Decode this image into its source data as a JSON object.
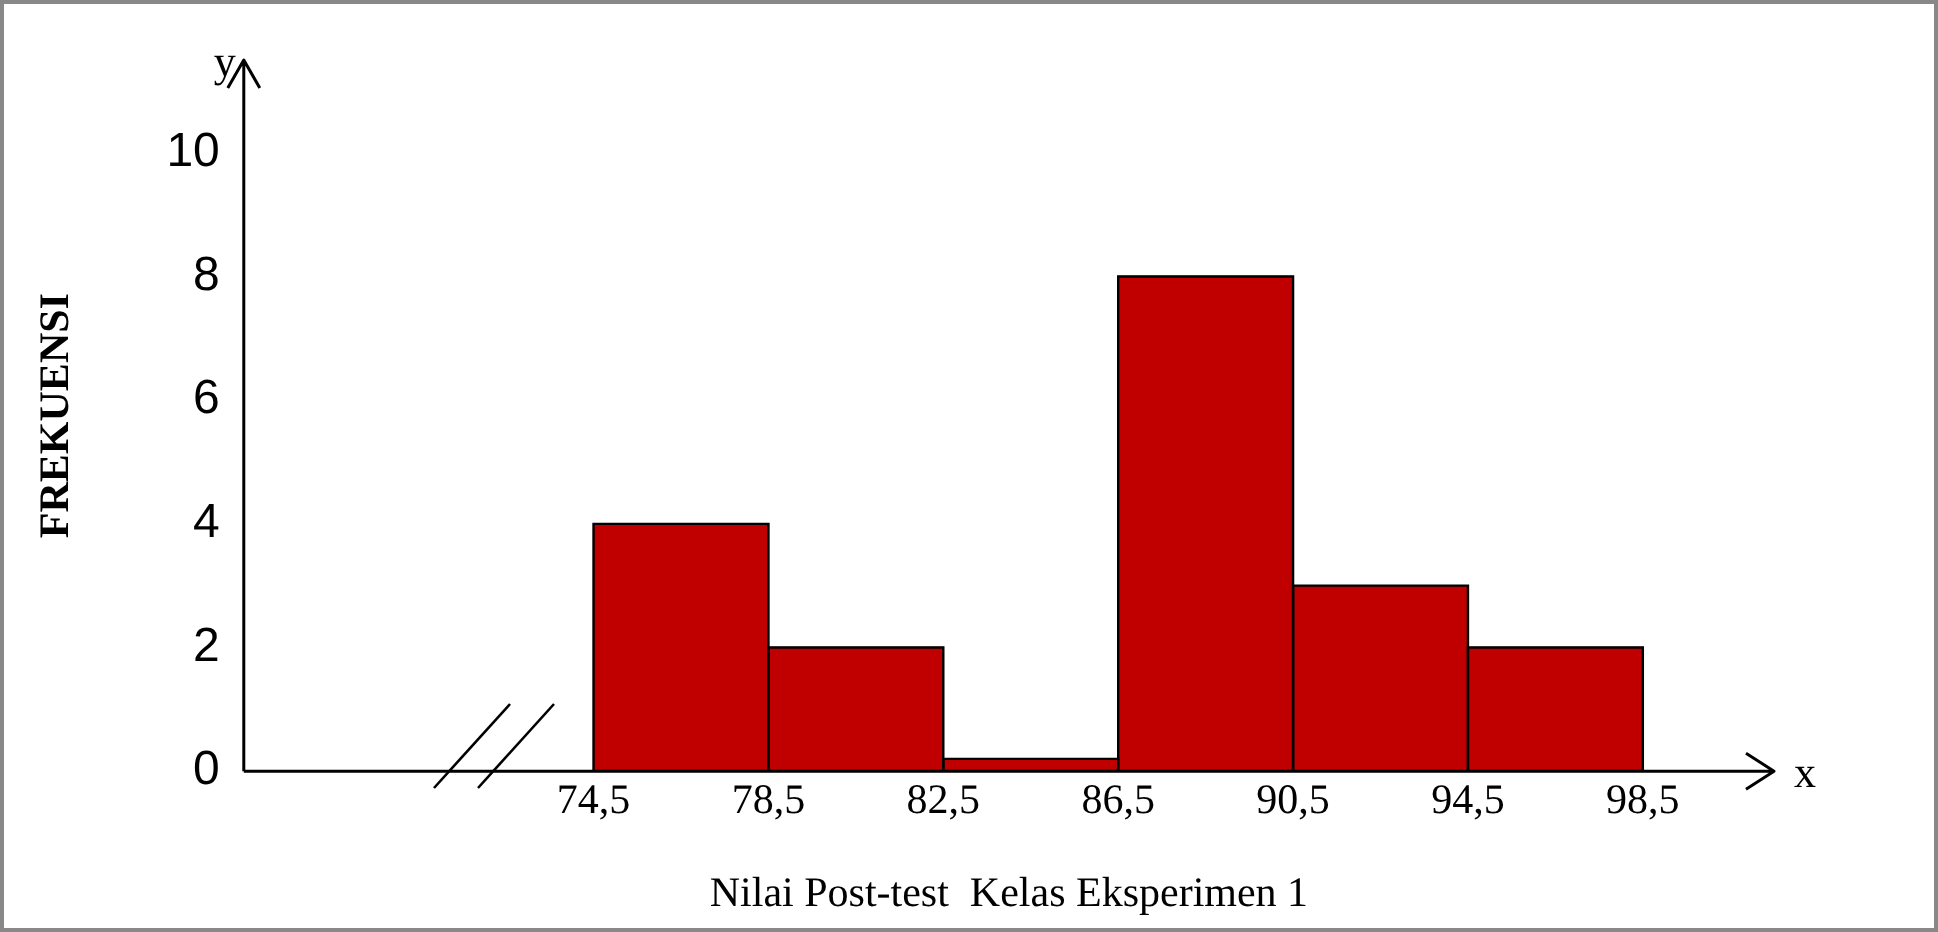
{
  "chart_data": {
    "type": "histogram",
    "xlabel": "Nilai Post-test  Kelas Eksperimen 1",
    "ylabel": "FREKUENSI",
    "bins": [
      74.5,
      78.5,
      82.5,
      86.5,
      90.5,
      94.5,
      98.5
    ],
    "values": [
      4,
      2,
      0.2,
      8,
      3,
      2
    ],
    "color": "#c00000",
    "xlim": [
      66.5,
      101.5
    ],
    "xticks": [
      {
        "value": 74.5,
        "label": "74,5"
      },
      {
        "value": 78.5,
        "label": "78,5"
      },
      {
        "value": 82.5,
        "label": "82,5"
      },
      {
        "value": 86.5,
        "label": "86,5"
      },
      {
        "value": 90.5,
        "label": "90,5"
      },
      {
        "value": 94.5,
        "label": "94,5"
      },
      {
        "value": 98.5,
        "label": "98,5"
      }
    ],
    "ylim": [
      0,
      11.5
    ],
    "yticks": [
      0,
      2,
      4,
      6,
      8,
      10
    ],
    "annotations": [
      "x",
      "y"
    ],
    "grid": false,
    "legend": false
  }
}
